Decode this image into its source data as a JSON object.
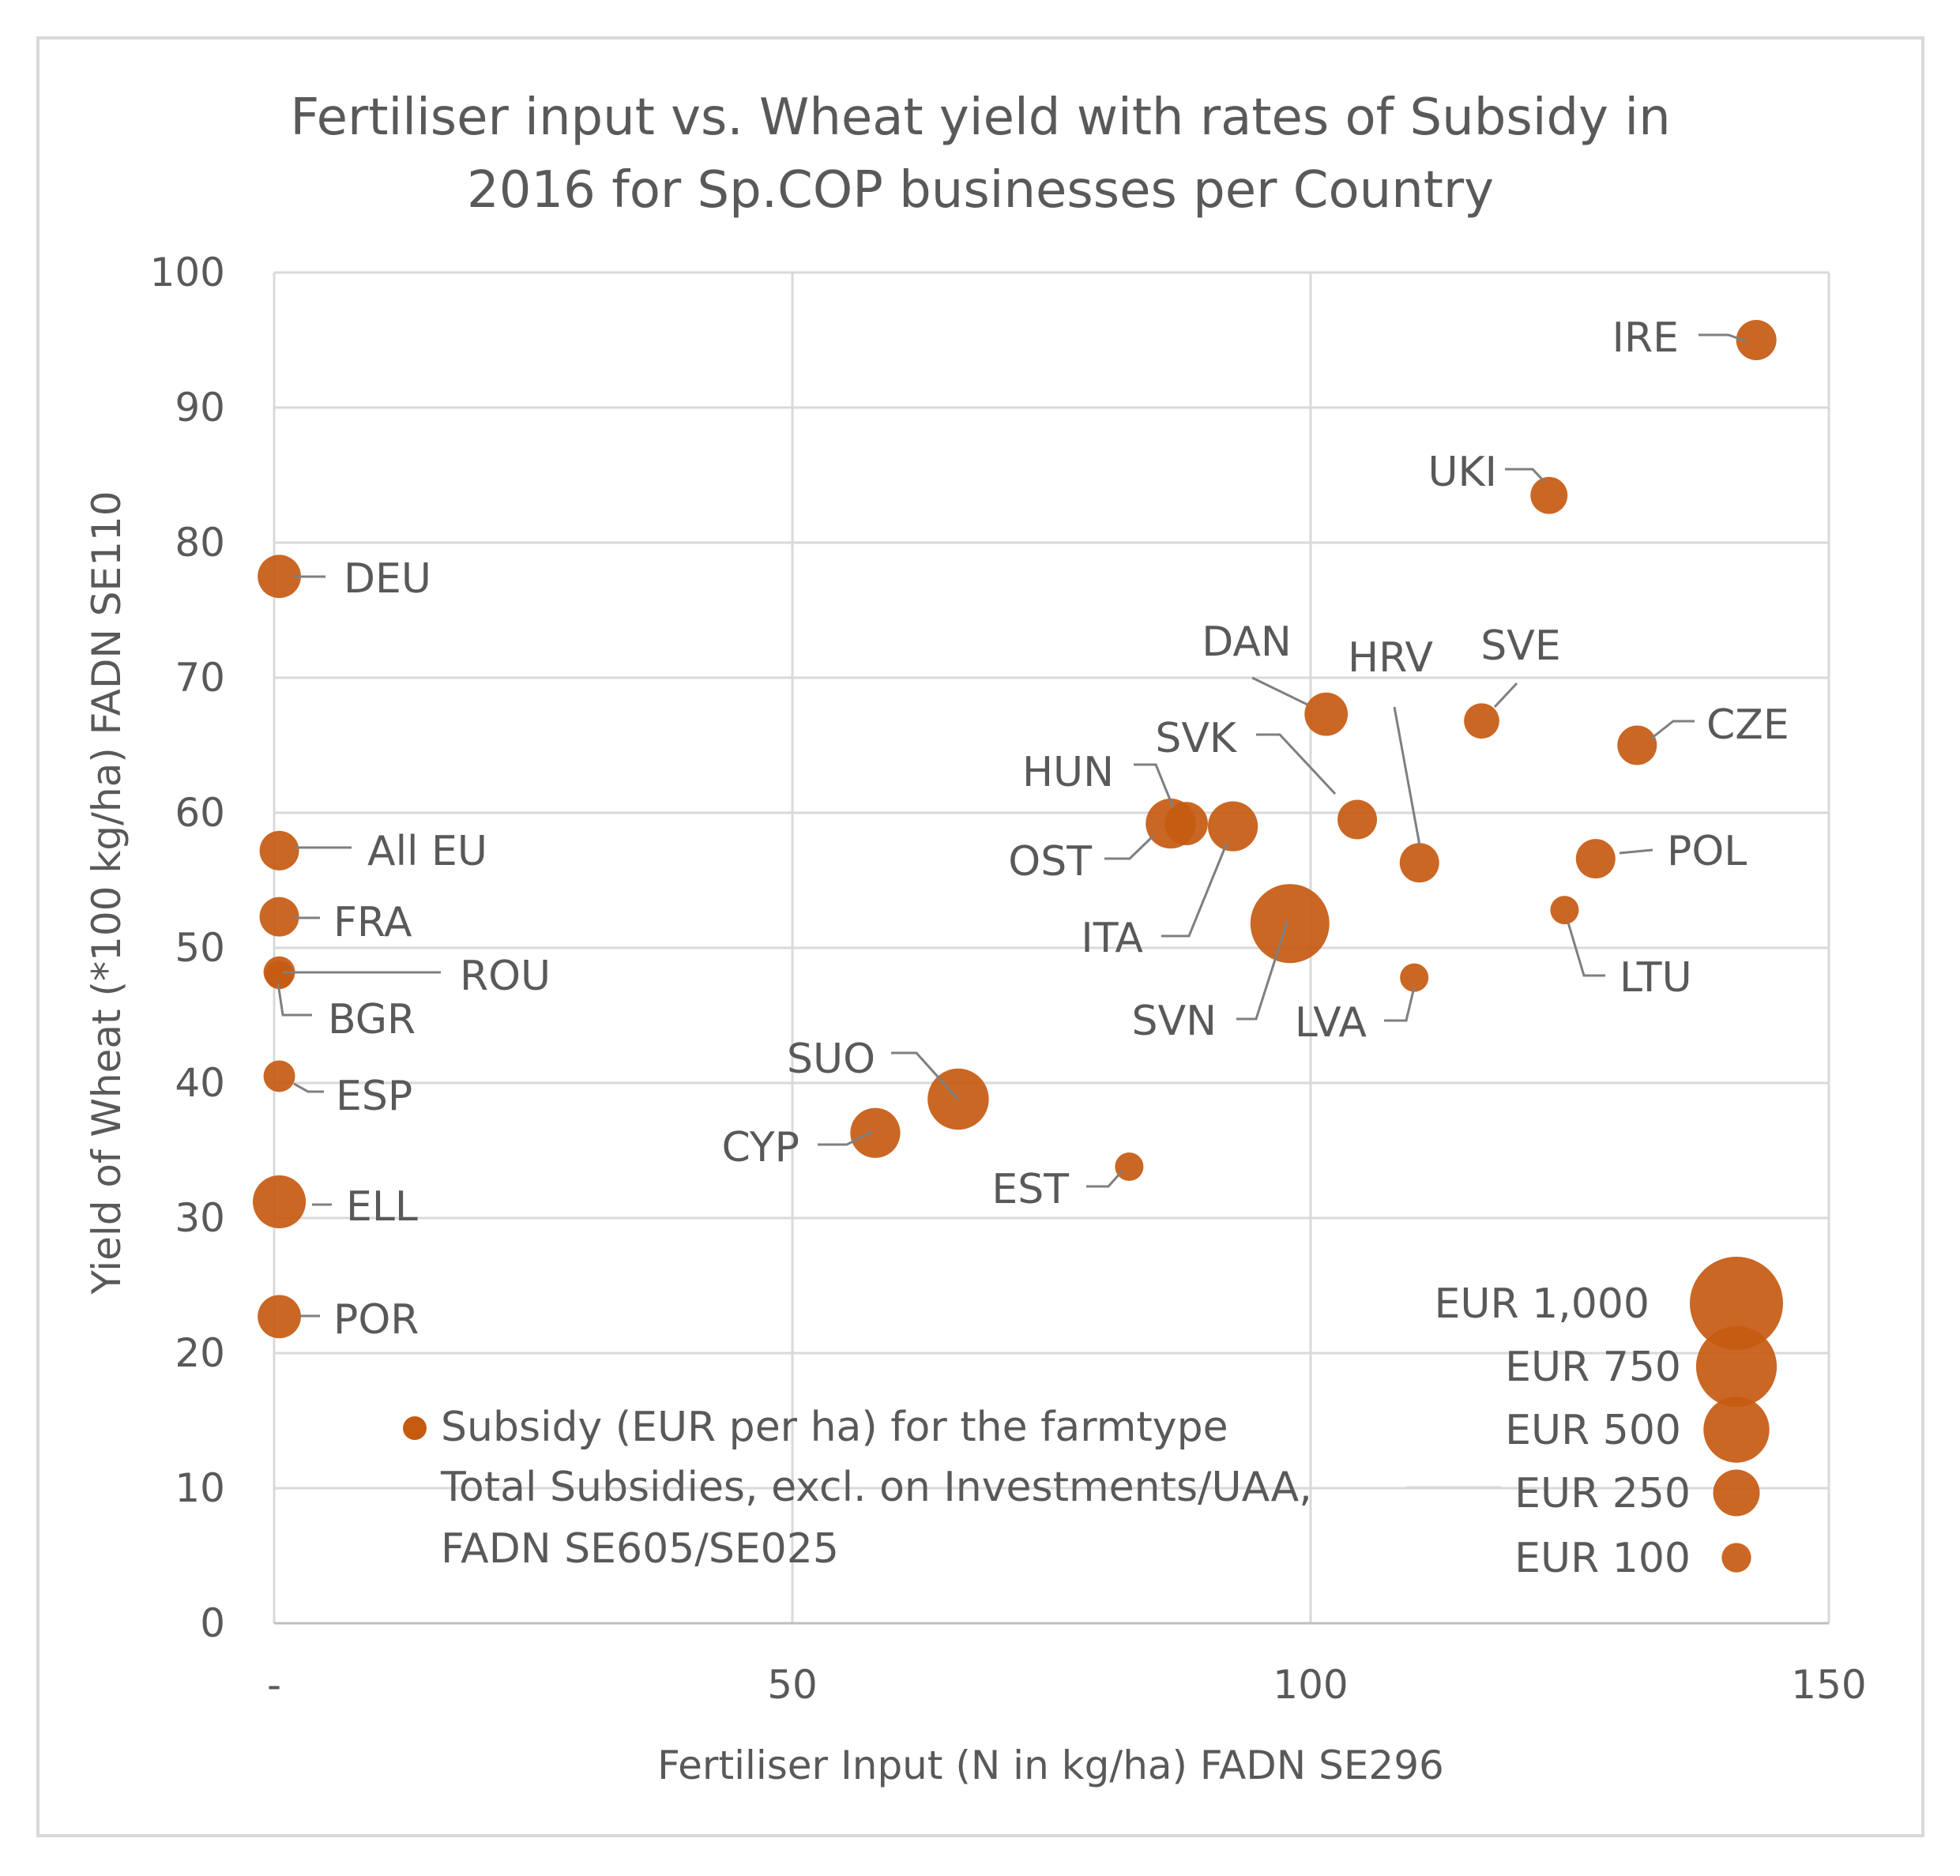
{
  "chart_data": {
    "type": "bubble",
    "title": [
      "Fertiliser input  vs. Wheat yield with rates of Subsidy in",
      "2016 for Sp.COP businesses per Country"
    ],
    "xlabel": "Fertiliser Input  (N in kg/ha)  FADN SE296",
    "ylabel": "Yield of Wheat (*100 kg/ha) FADN SE110",
    "xlim": [
      0,
      150
    ],
    "ylim": [
      0,
      100
    ],
    "x_ticks": [
      {
        "value": 0,
        "label": "-"
      },
      {
        "value": 50,
        "label": "50"
      },
      {
        "value": 100,
        "label": "100"
      },
      {
        "value": 150,
        "label": "150"
      }
    ],
    "y_ticks": [
      {
        "value": 0,
        "label": "0"
      },
      {
        "value": 10,
        "label": "10"
      },
      {
        "value": 20,
        "label": "20"
      },
      {
        "value": 30,
        "label": "30"
      },
      {
        "value": 40,
        "label": "40"
      },
      {
        "value": 50,
        "label": "50"
      },
      {
        "value": 60,
        "label": "60"
      },
      {
        "value": 70,
        "label": "70"
      },
      {
        "value": 80,
        "label": "80"
      },
      {
        "value": 90,
        "label": "90"
      },
      {
        "value": 100,
        "label": "100"
      }
    ],
    "bubble_color": "#C55A11",
    "series": [
      {
        "name": "Subsidy (EUR per ha) for the farmtype",
        "legend_lines": [
          "Subsidy (EUR per ha) for the farmtype",
          "Total Subsidies, excl. on Investments/UAA,",
          "FADN SE605/SE025"
        ],
        "points": [
          {
            "label": "IRE",
            "x": 143,
            "y": 95,
            "subsidy": 260
          },
          {
            "label": "UKI",
            "x": 123,
            "y": 83.5,
            "subsidy": 220
          },
          {
            "label": "DEU",
            "x": 0.5,
            "y": 77.5,
            "subsidy": 300
          },
          {
            "label": "DAN",
            "x": 101.5,
            "y": 67.3,
            "subsidy": 300
          },
          {
            "label": "SVE",
            "x": 116.5,
            "y": 66.8,
            "subsidy": 200
          },
          {
            "label": "CZE",
            "x": 131.5,
            "y": 65,
            "subsidy": 250
          },
          {
            "label": "SVK",
            "x": 104.5,
            "y": 59.5,
            "subsidy": 250
          },
          {
            "label": "HUN",
            "x": 88,
            "y": 59.2,
            "subsidy": 300
          },
          {
            "label": "OST",
            "x": 86.5,
            "y": 59.2,
            "subsidy": 400
          },
          {
            "label": "ITA",
            "x": 92.5,
            "y": 59,
            "subsidy": 400
          },
          {
            "label": "HRV",
            "x": 110.5,
            "y": 56.3,
            "subsidy": 250
          },
          {
            "label": "POL",
            "x": 127.5,
            "y": 56.6,
            "subsidy": 250
          },
          {
            "label": "LTU",
            "x": 124.5,
            "y": 52.8,
            "subsidy": 130
          },
          {
            "label": "SVN",
            "x": 98,
            "y": 51.8,
            "subsidy": 1000
          },
          {
            "label": "LVA",
            "x": 110,
            "y": 47.8,
            "subsidy": 130
          },
          {
            "label": "All EU",
            "x": 0.5,
            "y": 57.2,
            "subsidy": 250
          },
          {
            "label": "FRA",
            "x": 0.5,
            "y": 52.3,
            "subsidy": 250
          },
          {
            "label": "ROU",
            "x": 0.5,
            "y": 48.2,
            "subsidy": 160
          },
          {
            "label": "BGR",
            "x": 0.5,
            "y": 48,
            "subsidy": 130
          },
          {
            "label": "ESP",
            "x": 0.5,
            "y": 40.5,
            "subsidy": 160
          },
          {
            "label": "SUO",
            "x": 66,
            "y": 38.8,
            "subsidy": 600
          },
          {
            "label": "CYP",
            "x": 58,
            "y": 36.3,
            "subsidy": 400
          },
          {
            "label": "EST",
            "x": 82.5,
            "y": 33.8,
            "subsidy": 130
          },
          {
            "label": "ELL",
            "x": 0.5,
            "y": 31.2,
            "subsidy": 450
          },
          {
            "label": "POR",
            "x": 0.5,
            "y": 22.7,
            "subsidy": 300
          }
        ]
      }
    ],
    "size_legend": [
      {
        "label": "EUR 1,000",
        "value": 1000
      },
      {
        "label": "EUR 750",
        "value": 750
      },
      {
        "label": "EUR 500",
        "value": 500
      },
      {
        "label": "EUR 250",
        "value": 250
      },
      {
        "label": "EUR 100",
        "value": 100
      }
    ]
  }
}
